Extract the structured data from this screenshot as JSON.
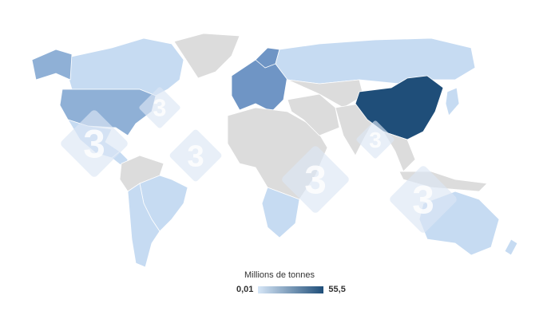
{
  "legend": {
    "title": "Millions de tonnes",
    "min_label": "0,01",
    "max_label": "55,5",
    "min_color": "#d6e6f7",
    "max_color": "#1f4e79"
  },
  "colors": {
    "no_data": "#dcdcdc",
    "low": "#c6dbf2",
    "medium": "#8fb0d6",
    "europe": "#6f95c5",
    "high": "#1f4e79",
    "watermark": "#dbe7f4",
    "border": "#ffffff"
  },
  "watermark": {
    "glyph": "3"
  },
  "regions": [
    {
      "name": "Canada",
      "level": "low"
    },
    {
      "name": "Alaska",
      "level": "medium"
    },
    {
      "name": "Greenland",
      "level": "no_data"
    },
    {
      "name": "United States",
      "level": "medium"
    },
    {
      "name": "Mexico",
      "level": "low"
    },
    {
      "name": "Central America",
      "level": "low"
    },
    {
      "name": "South America North",
      "level": "no_data"
    },
    {
      "name": "Brazil",
      "level": "low"
    },
    {
      "name": "Southern Cone",
      "level": "low"
    },
    {
      "name": "Europe",
      "level": "europe"
    },
    {
      "name": "Scandinavia",
      "level": "europe"
    },
    {
      "name": "Russia",
      "level": "low"
    },
    {
      "name": "Africa",
      "level": "no_data"
    },
    {
      "name": "Southern Africa",
      "level": "low"
    },
    {
      "name": "Middle East",
      "level": "no_data"
    },
    {
      "name": "Central Asia",
      "level": "no_data"
    },
    {
      "name": "India",
      "level": "no_data"
    },
    {
      "name": "China",
      "level": "high"
    },
    {
      "name": "Japan",
      "level": "low"
    },
    {
      "name": "Southeast Asia",
      "level": "no_data"
    },
    {
      "name": "Australia",
      "level": "low"
    },
    {
      "name": "New Zealand",
      "level": "low"
    },
    {
      "name": "Indonesia",
      "level": "no_data"
    }
  ]
}
